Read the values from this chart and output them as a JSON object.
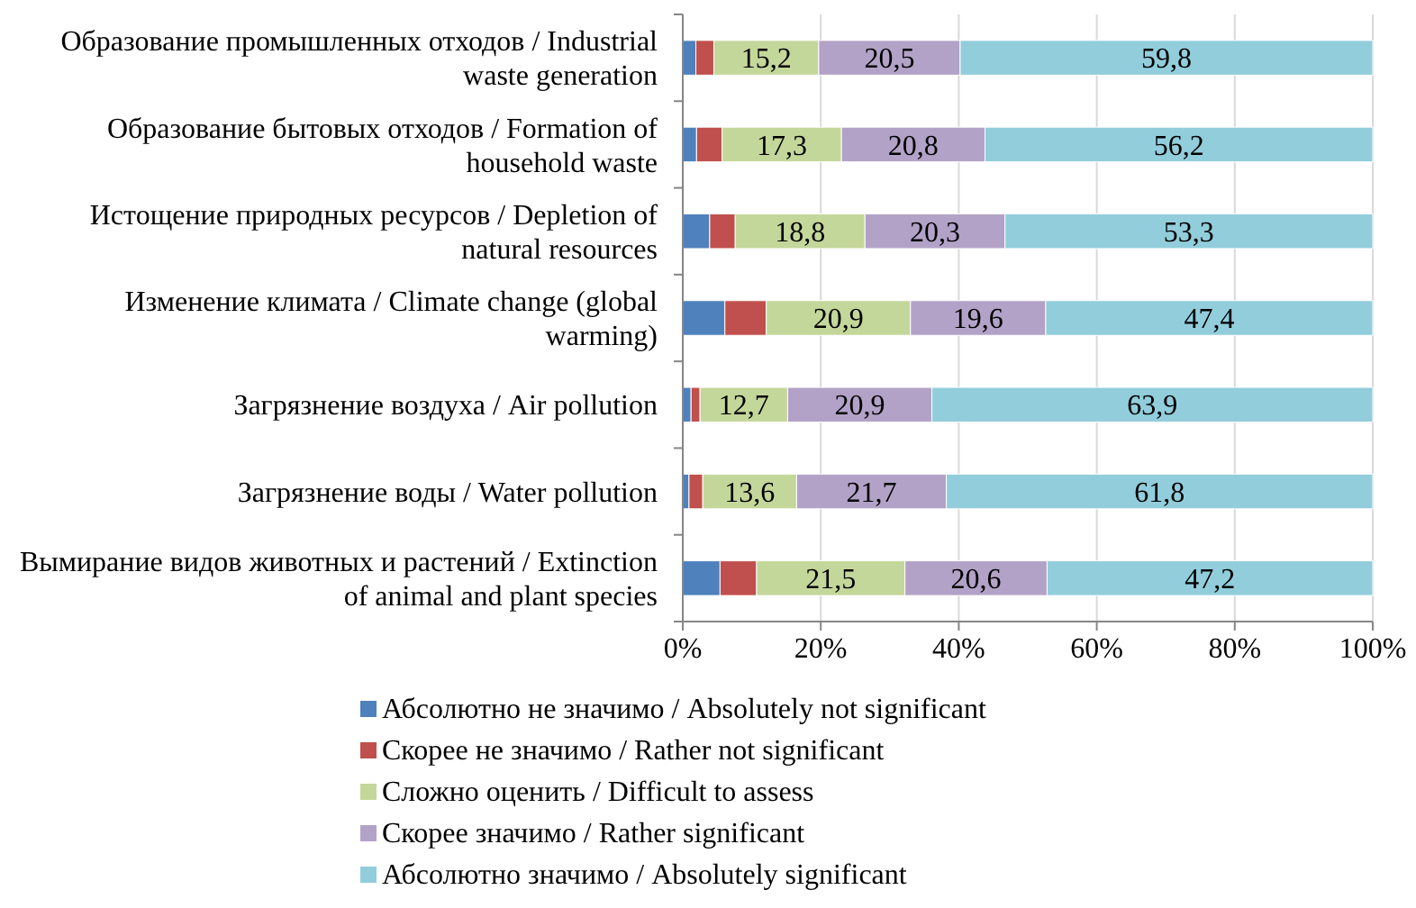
{
  "chart_data": {
    "type": "bar",
    "orientation": "horizontal",
    "stacked": true,
    "categories": [
      "Образование промышленных отходов / Industrial waste generation",
      "Образование бытовых отходов / Formation of household waste",
      "Истощение природных ресурсов / Depletion of natural resources",
      "Изменение климата / Climate change (global warming)",
      "Загрязнение воздуха / Air pollution",
      "Загрязнение воды / Water pollution",
      "Вымирание видов животных и растений / Extinction of animal and plant species"
    ],
    "series": [
      {
        "name": "Абсолютно не значимо / Absolutely not significant",
        "color": "#4f81bd",
        "values": [
          1.9,
          2.0,
          3.9,
          6.1,
          1.2,
          0.9,
          5.4
        ]
      },
      {
        "name": "Скорее не значимо / Rather not significant",
        "color": "#c0504d",
        "values": [
          2.6,
          3.7,
          3.7,
          6.0,
          1.3,
          2.0,
          5.3
        ]
      },
      {
        "name": "Сложно оценить / Difficult to assess",
        "color": "#c4d79b",
        "values": [
          15.2,
          17.3,
          18.8,
          20.9,
          12.7,
          13.6,
          21.5
        ],
        "value_labels": [
          "15,2",
          "17,3",
          "18,8",
          "20,9",
          "12,7",
          "13,6",
          "21,5"
        ]
      },
      {
        "name": "Скорее значимо / Rather significant",
        "color": "#b3a2c7",
        "values": [
          20.5,
          20.8,
          20.3,
          19.6,
          20.9,
          21.7,
          20.6
        ],
        "value_labels": [
          "20,5",
          "20,8",
          "20,3",
          "19,6",
          "20,9",
          "21,7",
          "20,6"
        ]
      },
      {
        "name": "Абсолютно значимо / Absolutely significant",
        "color": "#92cddc",
        "values": [
          59.8,
          56.2,
          53.3,
          47.4,
          63.9,
          61.8,
          47.2
        ],
        "value_labels": [
          "59,8",
          "56,2",
          "53,3",
          "47,4",
          "63,9",
          "61,8",
          "47,2"
        ]
      }
    ],
    "xlim": [
      0,
      100
    ],
    "xticks": [
      {
        "value": 0,
        "label": "0%"
      },
      {
        "value": 20,
        "label": "20%"
      },
      {
        "value": 40,
        "label": "40%"
      },
      {
        "value": 60,
        "label": "60%"
      },
      {
        "value": 80,
        "label": "80%"
      },
      {
        "value": 100,
        "label": "100%"
      }
    ],
    "grid": "x",
    "legend": "bottom"
  }
}
